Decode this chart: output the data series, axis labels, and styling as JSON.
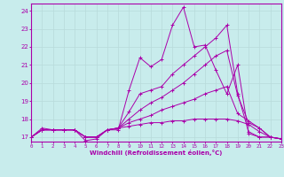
{
  "xlabel": "Windchill (Refroidissement éolien,°C)",
  "background_color": "#c8ecec",
  "line_color": "#aa00aa",
  "grid_color": "#b8dada",
  "xlim": [
    0,
    23
  ],
  "ylim": [
    16.75,
    24.4
  ],
  "yticks": [
    17,
    18,
    19,
    20,
    21,
    22,
    23,
    24
  ],
  "xticks": [
    0,
    1,
    2,
    3,
    4,
    5,
    6,
    7,
    8,
    9,
    10,
    11,
    12,
    13,
    14,
    15,
    16,
    17,
    18,
    19,
    20,
    21,
    22,
    23
  ],
  "lines": [
    [
      17.0,
      17.5,
      17.4,
      17.4,
      17.4,
      16.8,
      16.9,
      17.4,
      17.4,
      19.6,
      21.4,
      20.9,
      21.3,
      23.2,
      24.2,
      22.0,
      22.1,
      20.7,
      19.4,
      21.0,
      17.2,
      17.0,
      17.0,
      16.9
    ],
    [
      17.0,
      17.4,
      17.4,
      17.4,
      17.4,
      17.0,
      17.0,
      17.4,
      17.5,
      18.4,
      19.4,
      19.6,
      19.8,
      20.5,
      21.0,
      21.5,
      22.0,
      22.5,
      23.2,
      19.4,
      17.3,
      17.0,
      17.0,
      16.9
    ],
    [
      17.0,
      17.4,
      17.4,
      17.4,
      17.4,
      17.0,
      17.0,
      17.4,
      17.5,
      18.0,
      18.5,
      18.9,
      19.2,
      19.6,
      20.0,
      20.5,
      21.0,
      21.5,
      21.8,
      19.3,
      17.8,
      17.5,
      17.0,
      16.9
    ],
    [
      17.0,
      17.4,
      17.4,
      17.4,
      17.4,
      17.0,
      17.0,
      17.4,
      17.5,
      17.8,
      18.0,
      18.2,
      18.5,
      18.7,
      18.9,
      19.1,
      19.4,
      19.6,
      19.8,
      18.3,
      17.9,
      17.5,
      17.0,
      16.9
    ],
    [
      17.0,
      17.4,
      17.4,
      17.4,
      17.4,
      17.0,
      17.0,
      17.4,
      17.5,
      17.6,
      17.7,
      17.8,
      17.8,
      17.9,
      17.9,
      18.0,
      18.0,
      18.0,
      18.0,
      17.9,
      17.7,
      17.3,
      17.0,
      16.9
    ]
  ]
}
